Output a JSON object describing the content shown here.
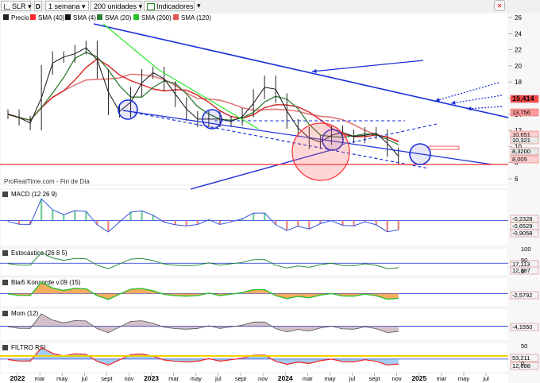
{
  "toolbar": {
    "symbol": "SLR",
    "interval": "1 semana",
    "units": "200 unidades",
    "indicators_label": "Indicadores",
    "dropdown_glyph": "▾"
  },
  "legend": {
    "items": [
      {
        "label": "Precio",
        "color": "#222222"
      },
      {
        "label": "SMA (40)",
        "color": "#ff2b2b"
      },
      {
        "label": "SMA (4)",
        "color": "#111111"
      },
      {
        "label": "SMA (20)",
        "color": "#2e7d32"
      },
      {
        "label": "SMA (200)",
        "color": "#27c22a"
      },
      {
        "label": "SMA (120)",
        "color": "#e05555"
      }
    ]
  },
  "colors": {
    "price": "#222222",
    "sma4": "#111111",
    "sma20": "#2e7d32",
    "sma40": "#d62222",
    "sma120": "#e06060",
    "sma200": "#18b81e",
    "trend_blue": "#1a2fd6",
    "highlight_red": "#ff3030",
    "green_line": "#2ee82e"
  },
  "chart_data": [
    {
      "type": "line",
      "title": "",
      "watermark": "ProRealTime.com - Fin de Día",
      "x_tick_labels": [
        "2022",
        "mar",
        "may",
        "jul",
        "sept",
        "nov",
        "2023",
        "mar",
        "may",
        "jul",
        "sept",
        "nov",
        "2024",
        "mar",
        "may",
        "jul",
        "sept",
        "nov",
        "2025",
        "mar",
        "may",
        "jul"
      ],
      "y_ticks": [
        26,
        24,
        22,
        20,
        18,
        16,
        14,
        12,
        10,
        8,
        6
      ],
      "ylim": [
        6,
        26
      ],
      "price_labels": [
        "15,414",
        "13,756",
        "10,651",
        "10,321",
        "8,3200",
        "8,005"
      ],
      "price_series": [
        {
          "x": "2022-01",
          "y": 14.0
        },
        {
          "x": "2022-02",
          "y": 13.2
        },
        {
          "x": "2022-03",
          "y": 12.6
        },
        {
          "x": "2022-04",
          "y": 19.5
        },
        {
          "x": "2022-05",
          "y": 21.2
        },
        {
          "x": "2022-06",
          "y": 21.0
        },
        {
          "x": "2022-07",
          "y": 22.0
        },
        {
          "x": "2022-08",
          "y": 22.5
        },
        {
          "x": "2022-09",
          "y": 19.0
        },
        {
          "x": "2022-10",
          "y": 14.5
        },
        {
          "x": "2022-11",
          "y": 14.2
        },
        {
          "x": "2022-12",
          "y": 16.8
        },
        {
          "x": "2023-01",
          "y": 19.0
        },
        {
          "x": "2023-02",
          "y": 19.3
        },
        {
          "x": "2023-03",
          "y": 17.5
        },
        {
          "x": "2023-04",
          "y": 15.5
        },
        {
          "x": "2023-05",
          "y": 13.8
        },
        {
          "x": "2023-06",
          "y": 13.0
        },
        {
          "x": "2023-07",
          "y": 13.8
        },
        {
          "x": "2023-08",
          "y": 13.0
        },
        {
          "x": "2023-09",
          "y": 13.2
        },
        {
          "x": "2023-10",
          "y": 14.2
        },
        {
          "x": "2023-11",
          "y": 16.5
        },
        {
          "x": "2023-12",
          "y": 18.2
        },
        {
          "x": "2024-01",
          "y": 16.0
        },
        {
          "x": "2024-02",
          "y": 12.8
        },
        {
          "x": "2024-03",
          "y": 11.8
        },
        {
          "x": "2024-04",
          "y": 10.3
        },
        {
          "x": "2024-05",
          "y": 10.8
        },
        {
          "x": "2024-06",
          "y": 12.0
        },
        {
          "x": "2024-07",
          "y": 11.5
        },
        {
          "x": "2024-08",
          "y": 11.0
        },
        {
          "x": "2024-09",
          "y": 11.8
        },
        {
          "x": "2024-10",
          "y": 11.5
        },
        {
          "x": "2024-11",
          "y": 9.3
        },
        {
          "x": "2024-12",
          "y": 8.3
        }
      ]
    },
    {
      "type": "bar",
      "title": "MACD (12 26 9)",
      "price_labels": [
        "-0,2328",
        "-0,6529",
        "-0,9058"
      ]
    },
    {
      "type": "line",
      "title": "Estocástico (26 8 5)",
      "y_ticks": [
        100,
        50,
        0
      ],
      "price_labels": [
        "17,113",
        "12,387"
      ]
    },
    {
      "type": "area",
      "title": "Blai5 Koncorde v.09 (15)",
      "price_labels": [
        "-2,5792"
      ]
    },
    {
      "type": "area",
      "title": "Mom (12)",
      "price_labels": [
        "-4,1550"
      ]
    },
    {
      "type": "area",
      "title": "FILTRO RSI",
      "y_ticks": [
        50,
        0
      ],
      "price_labels": [
        "53,211",
        "12,688"
      ]
    }
  ],
  "window_icon": "close-icon"
}
